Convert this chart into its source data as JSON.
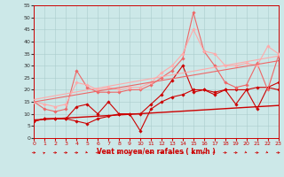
{
  "background_color": "#cce8e8",
  "grid_color": "#aacccc",
  "xlabel": "Vent moyen/en rafales ( km/h )",
  "xlim": [
    0,
    23
  ],
  "ylim": [
    0,
    55
  ],
  "yticks": [
    0,
    5,
    10,
    15,
    20,
    25,
    30,
    35,
    40,
    45,
    50,
    55
  ],
  "xticks": [
    0,
    1,
    2,
    3,
    4,
    5,
    6,
    7,
    8,
    9,
    10,
    11,
    12,
    13,
    14,
    15,
    16,
    17,
    18,
    19,
    20,
    21,
    22,
    23
  ],
  "lines": [
    {
      "x": [
        0,
        1,
        2,
        3,
        4,
        5,
        6,
        7,
        8,
        9,
        10,
        11,
        12,
        13,
        14,
        15,
        16,
        17,
        18,
        19,
        20,
        21,
        22,
        23
      ],
      "y": [
        7,
        8,
        8,
        8,
        7,
        6,
        8,
        9,
        10,
        10,
        3,
        12,
        15,
        17,
        18,
        20,
        20,
        19,
        20,
        14,
        20,
        12,
        21,
        20
      ],
      "color": "#cc0000",
      "lw": 0.8,
      "marker": "D",
      "ms": 1.8
    },
    {
      "x": [
        0,
        1,
        2,
        3,
        4,
        5,
        6,
        7,
        8,
        9,
        10,
        11,
        12,
        13,
        14,
        15,
        16,
        17,
        18,
        19,
        20,
        21,
        22,
        23
      ],
      "y": [
        7,
        8,
        8,
        8,
        13,
        14,
        10,
        15,
        10,
        10,
        10,
        14,
        18,
        24,
        30,
        19,
        20,
        18,
        20,
        20,
        20,
        21,
        21,
        23
      ],
      "color": "#cc0000",
      "lw": 0.8,
      "marker": "D",
      "ms": 1.8
    },
    {
      "x": [
        0,
        1,
        2,
        3,
        4,
        5,
        6,
        7,
        8,
        9,
        10,
        11,
        12,
        13,
        14,
        15,
        16,
        17,
        18,
        19,
        20,
        21,
        22,
        23
      ],
      "y": [
        15,
        12,
        11,
        12,
        28,
        21,
        19,
        19,
        19,
        20,
        20,
        22,
        25,
        28,
        33,
        52,
        36,
        30,
        23,
        21,
        22,
        31,
        20,
        34
      ],
      "color": "#ee6666",
      "lw": 0.8,
      "marker": "D",
      "ms": 1.8
    },
    {
      "x": [
        0,
        1,
        2,
        3,
        4,
        5,
        6,
        7,
        8,
        9,
        10,
        11,
        12,
        13,
        14,
        15,
        16,
        17,
        18,
        19,
        20,
        21,
        22,
        23
      ],
      "y": [
        15,
        14,
        13,
        14,
        23,
        22,
        20,
        21,
        20,
        21,
        21,
        23,
        27,
        30,
        35,
        45,
        36,
        35,
        30,
        30,
        31,
        30,
        38,
        35
      ],
      "color": "#ffaaaa",
      "lw": 0.8,
      "marker": "D",
      "ms": 1.8
    },
    {
      "x": [
        0,
        23
      ],
      "y": [
        7.5,
        13.5
      ],
      "color": "#cc0000",
      "lw": 1.0,
      "marker": null,
      "ms": 0
    },
    {
      "x": [
        0,
        23
      ],
      "y": [
        15,
        32
      ],
      "color": "#ee6666",
      "lw": 0.8,
      "marker": null,
      "ms": 0
    },
    {
      "x": [
        0,
        23
      ],
      "y": [
        16,
        34
      ],
      "color": "#ffaaaa",
      "lw": 0.8,
      "marker": null,
      "ms": 0
    }
  ],
  "wind_arrows": {
    "color": "#cc0000",
    "x": [
      0,
      1,
      2,
      3,
      4,
      5,
      6,
      7,
      8,
      9,
      10,
      11,
      12,
      13,
      14,
      15,
      16,
      17,
      18,
      19,
      20,
      21,
      22,
      23
    ],
    "angles": [
      0,
      45,
      0,
      0,
      0,
      315,
      0,
      0,
      45,
      45,
      90,
      0,
      0,
      45,
      90,
      0,
      0,
      315,
      0,
      0,
      315,
      0,
      315,
      0
    ]
  }
}
